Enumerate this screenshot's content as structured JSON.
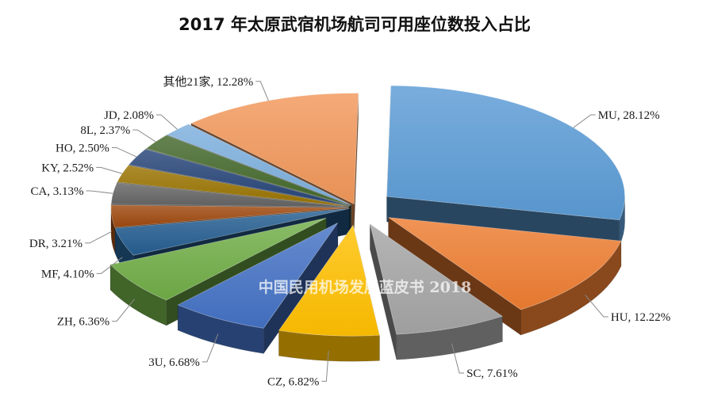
{
  "chart_data": {
    "type": "pie",
    "title": "2017 年太原武宿机场航司可用座位数投入占比",
    "watermark": "中国民用机场发展蓝皮书 2018",
    "start_angle_deg": 89,
    "slices": [
      {
        "name": "MU",
        "value": 28.12,
        "label": "MU, 28.12%",
        "color": "#5B9BD5",
        "explode": 48
      },
      {
        "name": "HU",
        "value": 12.22,
        "label": "HU, 12.22%",
        "color": "#ED7D31",
        "explode": 48
      },
      {
        "name": "SC",
        "value": 7.61,
        "label": "SC, 7.61%",
        "color": "#A5A5A5",
        "explode": 48
      },
      {
        "name": "CZ",
        "value": 6.82,
        "label": "CZ, 6.82%",
        "color": "#FFC000",
        "explode": 48
      },
      {
        "name": "3U",
        "value": 6.68,
        "label": "3U, 6.68%",
        "color": "#4472C4",
        "explode": 48
      },
      {
        "name": "ZH",
        "value": 6.36,
        "label": "ZH, 6.36%",
        "color": "#70AD47",
        "explode": 48
      },
      {
        "name": "MF",
        "value": 4.1,
        "label": "MF, 4.10%",
        "color": "#255E91",
        "explode": 10
      },
      {
        "name": "DR",
        "value": 3.21,
        "label": "DR, 3.21%",
        "color": "#9E480E",
        "explode": 10
      },
      {
        "name": "CA",
        "value": 3.13,
        "label": "CA, 3.13%",
        "color": "#636363",
        "explode": 10
      },
      {
        "name": "KY",
        "value": 2.52,
        "label": "KY, 2.52%",
        "color": "#997300",
        "explode": 10
      },
      {
        "name": "HO",
        "value": 2.5,
        "label": "HO, 2.50%",
        "color": "#264478",
        "explode": 10
      },
      {
        "name": "8L",
        "value": 2.37,
        "label": "8L, 2.37%",
        "color": "#43682B",
        "explode": 10
      },
      {
        "name": "JD",
        "value": 2.08,
        "label": "JD, 2.08%",
        "color": "#7CAFDD",
        "explode": 10
      },
      {
        "name": "其他21家",
        "value": 12.28,
        "label": "其他21家, 12.28%",
        "color": "#F1975A",
        "explode": 10
      }
    ]
  }
}
